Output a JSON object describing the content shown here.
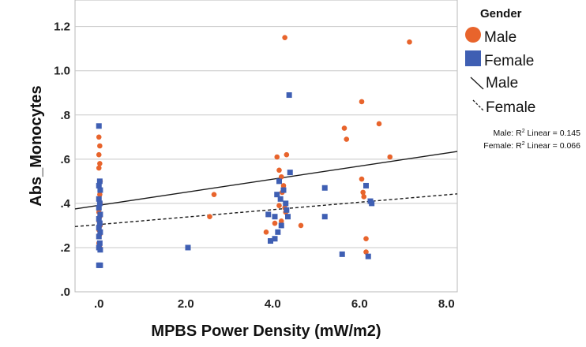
{
  "chart_data": {
    "type": "scatter",
    "title": "",
    "xlabel": "MPBS Power Density (mW/m2)",
    "ylabel": "Abs_Monocytes",
    "xlim": [
      -0.55,
      8.25
    ],
    "ylim": [
      0.0,
      1.32
    ],
    "grid": "horizontal",
    "x_ticks": [
      {
        "value": 0,
        "label": ".0"
      },
      {
        "value": 2,
        "label": "2.0"
      },
      {
        "value": 4,
        "label": "4.0"
      },
      {
        "value": 6,
        "label": "6.0"
      },
      {
        "value": 8,
        "label": "8.0"
      }
    ],
    "y_ticks": [
      {
        "value": 0.0,
        "label": ".0"
      },
      {
        "value": 0.2,
        "label": ".2"
      },
      {
        "value": 0.4,
        "label": ".4"
      },
      {
        "value": 0.6,
        "label": ".6"
      },
      {
        "value": 0.8,
        "label": ".8"
      },
      {
        "value": 1.0,
        "label": "1.0"
      },
      {
        "value": 1.2,
        "label": "1.2"
      }
    ],
    "legend": {
      "title": "Gender",
      "position": "right",
      "entries": [
        {
          "label": "Male",
          "kind": "marker",
          "shape": "circle",
          "color": "#e8642c"
        },
        {
          "label": "Female",
          "kind": "marker",
          "shape": "square",
          "color": "#3f5fb3"
        },
        {
          "label": "Male",
          "kind": "line",
          "style": "solid",
          "color": "#1a1a1a"
        },
        {
          "label": "Female",
          "kind": "line",
          "style": "dashed",
          "color": "#1a1a1a"
        }
      ]
    },
    "annotations": [
      {
        "prefix": "Male: R",
        "sup": "2",
        "suffix": " Linear = 0.145"
      },
      {
        "prefix": "Female: R",
        "sup": "2",
        "suffix": " Linear = 0.066"
      }
    ],
    "series": [
      {
        "name": "Male",
        "marker": "circle",
        "color": "#e8642c",
        "points": [
          {
            "x": 0.0,
            "y": 0.7
          },
          {
            "x": 0.02,
            "y": 0.66
          },
          {
            "x": 0.0,
            "y": 0.62
          },
          {
            "x": 0.02,
            "y": 0.58
          },
          {
            "x": 0.0,
            "y": 0.56
          },
          {
            "x": 0.03,
            "y": 0.5
          },
          {
            "x": 0.0,
            "y": 0.48
          },
          {
            "x": 0.02,
            "y": 0.44
          },
          {
            "x": 0.0,
            "y": 0.42
          },
          {
            "x": 0.03,
            "y": 0.4
          },
          {
            "x": 0.0,
            "y": 0.36
          },
          {
            "x": 0.02,
            "y": 0.34
          },
          {
            "x": 0.0,
            "y": 0.32
          },
          {
            "x": 0.03,
            "y": 0.3
          },
          {
            "x": 0.0,
            "y": 0.28
          },
          {
            "x": 0.02,
            "y": 0.26
          },
          {
            "x": 0.0,
            "y": 0.22
          },
          {
            "x": 0.02,
            "y": 0.2
          },
          {
            "x": 2.55,
            "y": 0.34
          },
          {
            "x": 2.65,
            "y": 0.44
          },
          {
            "x": 3.85,
            "y": 0.27
          },
          {
            "x": 4.05,
            "y": 0.31
          },
          {
            "x": 4.15,
            "y": 0.39
          },
          {
            "x": 4.1,
            "y": 0.61
          },
          {
            "x": 4.15,
            "y": 0.55
          },
          {
            "x": 4.2,
            "y": 0.52
          },
          {
            "x": 4.22,
            "y": 0.45
          },
          {
            "x": 4.25,
            "y": 0.48
          },
          {
            "x": 4.28,
            "y": 0.38
          },
          {
            "x": 4.3,
            "y": 0.36
          },
          {
            "x": 4.32,
            "y": 0.62
          },
          {
            "x": 4.2,
            "y": 0.32
          },
          {
            "x": 4.28,
            "y": 1.15
          },
          {
            "x": 4.65,
            "y": 0.3
          },
          {
            "x": 5.65,
            "y": 0.74
          },
          {
            "x": 5.7,
            "y": 0.69
          },
          {
            "x": 6.05,
            "y": 0.86
          },
          {
            "x": 6.05,
            "y": 0.51
          },
          {
            "x": 6.08,
            "y": 0.45
          },
          {
            "x": 6.1,
            "y": 0.43
          },
          {
            "x": 6.15,
            "y": 0.24
          },
          {
            "x": 6.15,
            "y": 0.18
          },
          {
            "x": 6.45,
            "y": 0.76
          },
          {
            "x": 6.7,
            "y": 0.61
          },
          {
            "x": 7.15,
            "y": 1.13
          }
        ]
      },
      {
        "name": "Female",
        "marker": "square",
        "color": "#3f5fb3",
        "points": [
          {
            "x": 0.0,
            "y": 0.75
          },
          {
            "x": 0.02,
            "y": 0.5
          },
          {
            "x": 0.0,
            "y": 0.48
          },
          {
            "x": 0.03,
            "y": 0.46
          },
          {
            "x": 0.0,
            "y": 0.42
          },
          {
            "x": 0.02,
            "y": 0.4
          },
          {
            "x": 0.0,
            "y": 0.38
          },
          {
            "x": 0.03,
            "y": 0.35
          },
          {
            "x": 0.0,
            "y": 0.33
          },
          {
            "x": 0.02,
            "y": 0.31
          },
          {
            "x": 0.0,
            "y": 0.29
          },
          {
            "x": 0.03,
            "y": 0.27
          },
          {
            "x": 0.0,
            "y": 0.25
          },
          {
            "x": 0.02,
            "y": 0.22
          },
          {
            "x": 0.0,
            "y": 0.2
          },
          {
            "x": 0.03,
            "y": 0.19
          },
          {
            "x": 0.0,
            "y": 0.12
          },
          {
            "x": 0.03,
            "y": 0.12
          },
          {
            "x": 2.05,
            "y": 0.2
          },
          {
            "x": 3.9,
            "y": 0.35
          },
          {
            "x": 3.95,
            "y": 0.23
          },
          {
            "x": 4.05,
            "y": 0.24
          },
          {
            "x": 4.05,
            "y": 0.34
          },
          {
            "x": 4.1,
            "y": 0.44
          },
          {
            "x": 4.12,
            "y": 0.27
          },
          {
            "x": 4.15,
            "y": 0.5
          },
          {
            "x": 4.18,
            "y": 0.42
          },
          {
            "x": 4.2,
            "y": 0.3
          },
          {
            "x": 4.25,
            "y": 0.46
          },
          {
            "x": 4.3,
            "y": 0.4
          },
          {
            "x": 4.32,
            "y": 0.37
          },
          {
            "x": 4.35,
            "y": 0.34
          },
          {
            "x": 4.38,
            "y": 0.89
          },
          {
            "x": 4.4,
            "y": 0.54
          },
          {
            "x": 5.2,
            "y": 0.47
          },
          {
            "x": 5.2,
            "y": 0.34
          },
          {
            "x": 5.6,
            "y": 0.17
          },
          {
            "x": 6.15,
            "y": 0.48
          },
          {
            "x": 6.2,
            "y": 0.16
          },
          {
            "x": 6.25,
            "y": 0.41
          },
          {
            "x": 6.28,
            "y": 0.4
          }
        ]
      }
    ],
    "fit_lines": [
      {
        "name": "Male",
        "style": "solid",
        "x": [
          -0.55,
          8.25
        ],
        "y": [
          0.375,
          0.635
        ]
      },
      {
        "name": "Female",
        "style": "dashed",
        "x": [
          -0.55,
          8.25
        ],
        "y": [
          0.295,
          0.443
        ]
      }
    ]
  }
}
